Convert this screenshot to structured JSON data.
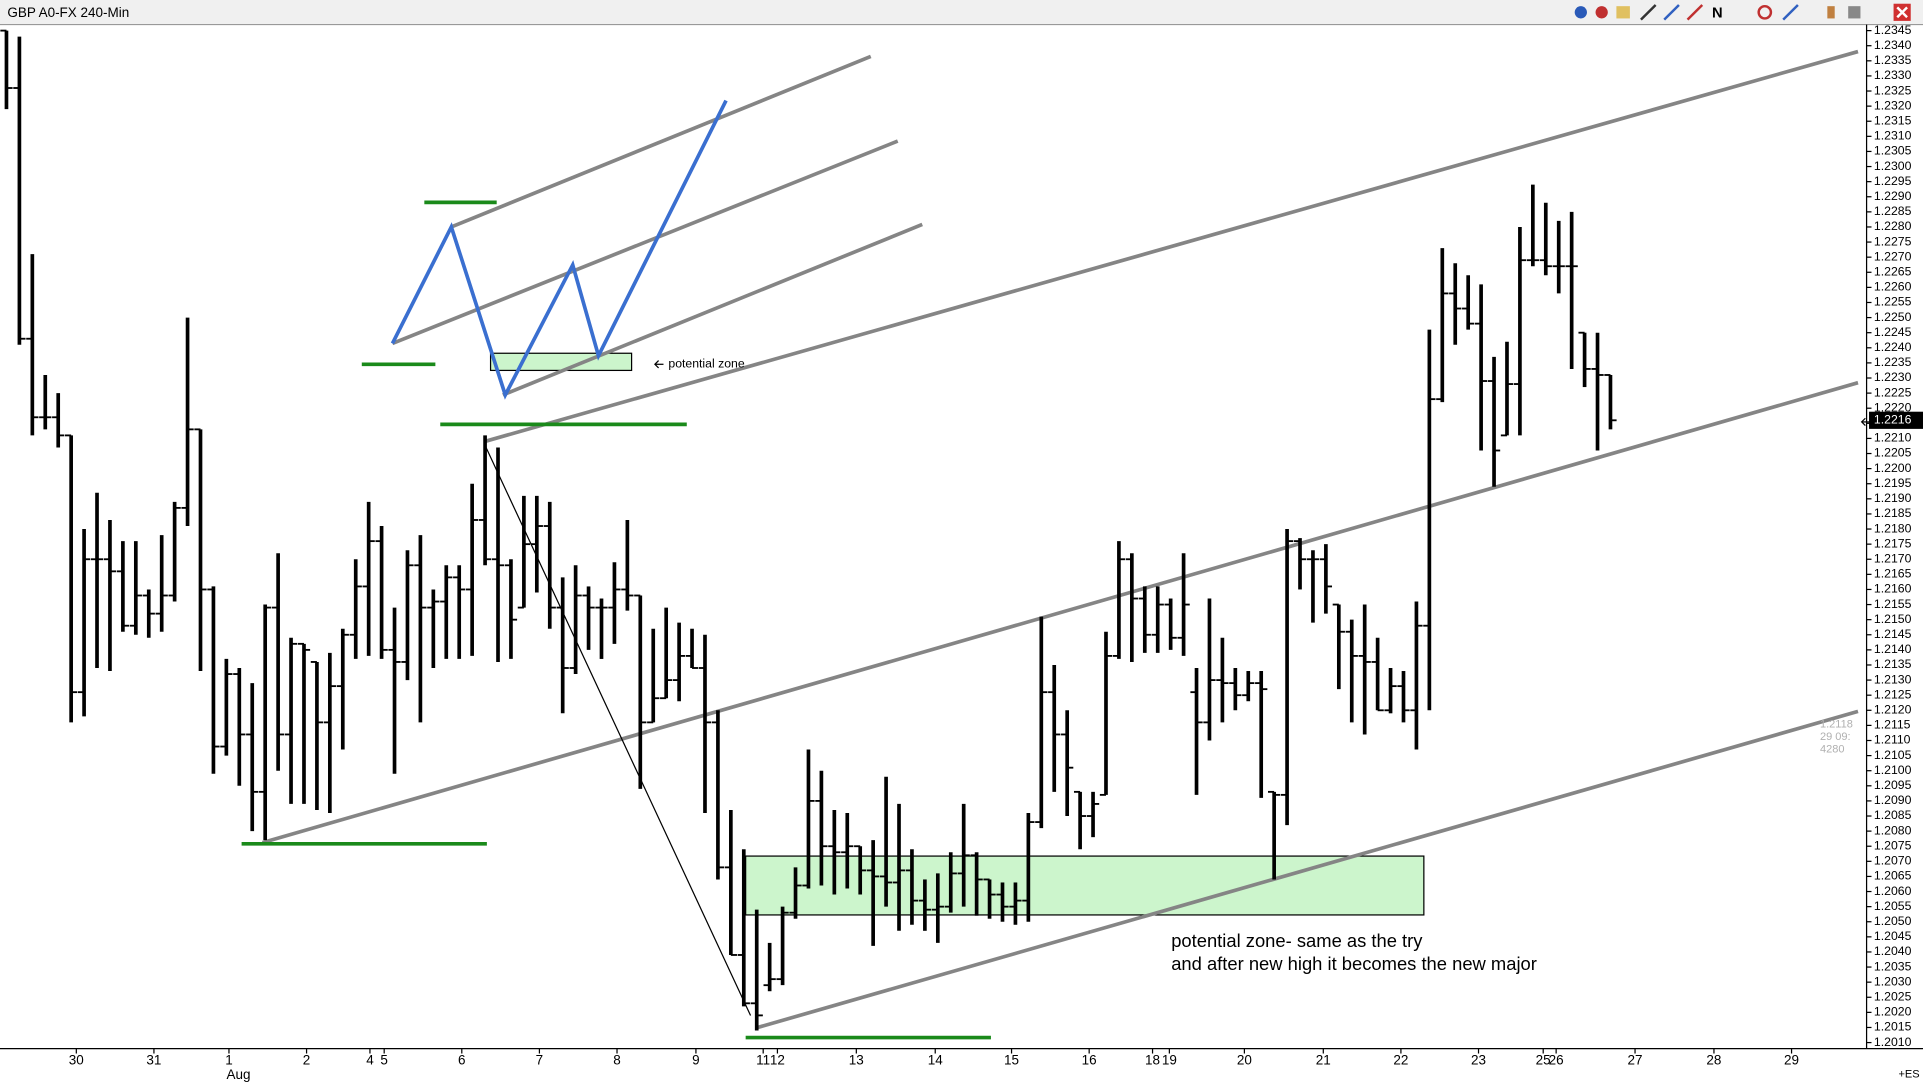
{
  "chart_data": {
    "type": "ohlc",
    "title": "GBP A0-FX 240-Min",
    "color": "#000000",
    "open": [
      1.2345,
      1.2326,
      1.2243,
      1.2217,
      1.2217,
      1.2211,
      1.2126,
      1.217,
      1.217,
      1.2166,
      1.2148,
      1.2158,
      1.2152,
      1.2158,
      1.2187,
      1.2213,
      1.216,
      1.2108,
      1.2132,
      1.2112,
      1.2093,
      1.2154,
      1.2112,
      1.2142,
      1.2136,
      1.2116,
      1.2128,
      1.2145,
      1.2161,
      1.2176,
      1.214,
      1.2136,
      1.2168,
      1.2154,
      1.2156,
      1.2164,
      1.216,
      1.2183,
      1.217,
      1.2168,
      1.2154,
      1.2175,
      1.2181,
      1.2154,
      1.2134,
      1.2158,
      1.2154,
      1.2154,
      1.216,
      1.2158,
      1.2116,
      1.2124,
      1.213,
      1.2138,
      1.2134,
      1.2116,
      1.2068,
      1.2039,
      1.2023,
      1.2029,
      1.2031,
      1.2053,
      1.2062,
      1.209,
      1.2075,
      1.2073,
      1.2075,
      1.2067,
      1.2065,
      1.2063,
      1.2067,
      1.2057,
      1.2054,
      1.2055,
      1.2066,
      1.2072,
      1.2064,
      1.2059,
      1.2055,
      1.2057,
      1.2083,
      1.2126,
      1.2112,
      1.2093,
      1.2085,
      1.2092,
      1.2138,
      1.217,
      1.2157,
      1.2145,
      1.2155,
      1.2144,
      1.2126,
      1.2116,
      1.213,
      1.2129,
      1.2125,
      1.2129,
      1.2093,
      1.2092,
      1.2176,
      1.217,
      1.217,
      1.2155,
      1.2146,
      1.2138,
      1.2136,
      1.212,
      1.2128,
      1.212,
      1.2148,
      1.2223,
      1.2258,
      1.2253,
      1.2248,
      1.2229,
      1.2211,
      1.2228,
      1.2269,
      1.2269,
      1.2267,
      1.2267,
      1.2245,
      1.2233,
      1.2231
    ],
    "high": [
      1.2345,
      1.2343,
      1.2271,
      1.2231,
      1.2225,
      1.2211,
      1.218,
      1.2192,
      1.2183,
      1.2176,
      1.2176,
      1.216,
      1.2178,
      1.2189,
      1.225,
      1.2213,
      1.2161,
      1.2137,
      1.2134,
      1.2129,
      1.2155,
      1.2172,
      1.2144,
      1.2142,
      1.2136,
      1.2139,
      1.2147,
      1.217,
      1.2189,
      1.2181,
      1.2154,
      1.2173,
      1.2178,
      1.216,
      1.2168,
      1.2168,
      1.2195,
      1.2211,
      1.2207,
      1.217,
      1.2191,
      1.2191,
      1.2189,
      1.2164,
      1.2168,
      1.2161,
      1.2157,
      1.2169,
      1.2183,
      1.2158,
      1.2147,
      1.2154,
      1.2149,
      1.2147,
      1.2145,
      1.212,
      1.2087,
      1.2074,
      1.2054,
      1.2043,
      1.2055,
      1.2068,
      1.2107,
      1.21,
      1.2087,
      1.2086,
      1.2075,
      1.2077,
      1.2098,
      1.2089,
      1.2074,
      1.2064,
      1.2066,
      1.2073,
      1.2089,
      1.2073,
      1.2064,
      1.2063,
      1.2063,
      1.2086,
      1.2151,
      1.2135,
      1.212,
      1.2093,
      1.2093,
      1.2146,
      1.2176,
      1.2172,
      1.2161,
      1.2161,
      1.2157,
      1.2172,
      1.2134,
      1.2157,
      1.2144,
      1.2134,
      1.2133,
      1.2133,
      1.2093,
      1.218,
      1.2177,
      1.2173,
      1.2175,
      1.2155,
      1.215,
      1.2155,
      1.2144,
      1.2134,
      1.2133,
      1.2156,
      1.2246,
      1.2273,
      1.2268,
      1.2264,
      1.2261,
      1.2237,
      1.2242,
      1.228,
      1.2294,
      1.2288,
      1.2282,
      1.2285,
      1.2245,
      1.2245,
      1.2231
    ],
    "low": [
      1.2319,
      1.2241,
      1.2211,
      1.2213,
      1.2207,
      1.2116,
      1.2118,
      1.2134,
      1.2133,
      1.2146,
      1.2145,
      1.2144,
      1.2146,
      1.2156,
      1.2181,
      1.2133,
      1.2099,
      1.2105,
      1.2095,
      1.208,
      1.2077,
      1.21,
      1.2089,
      1.2089,
      1.2087,
      1.2086,
      1.2107,
      1.2137,
      1.2138,
      1.2137,
      1.2099,
      1.213,
      1.2116,
      1.2134,
      1.2137,
      1.2137,
      1.2138,
      1.2168,
      1.2136,
      1.2137,
      1.2154,
      1.2159,
      1.2147,
      1.2119,
      1.2132,
      1.214,
      1.2137,
      1.2142,
      1.2153,
      1.2094,
      1.2116,
      1.2124,
      1.2123,
      1.2134,
      1.2086,
      1.2064,
      1.2039,
      1.2022,
      1.2014,
      1.2027,
      1.2029,
      1.2051,
      1.2061,
      1.2062,
      1.2059,
      1.2061,
      1.2059,
      1.2042,
      1.2055,
      1.2047,
      1.2049,
      1.2047,
      1.2043,
      1.2053,
      1.2055,
      1.2052,
      1.2051,
      1.205,
      1.2049,
      1.205,
      1.2081,
      1.2093,
      1.2085,
      1.2074,
      1.2078,
      1.2092,
      1.2137,
      1.2136,
      1.2139,
      1.2139,
      1.214,
      1.2138,
      1.2092,
      1.211,
      1.2116,
      1.212,
      1.2123,
      1.2091,
      1.2064,
      1.2082,
      1.216,
      1.2149,
      1.2152,
      1.2127,
      1.2116,
      1.2112,
      1.212,
      1.2119,
      1.2116,
      1.2107,
      1.212,
      1.2222,
      1.2241,
      1.2246,
      1.2206,
      1.2194,
      1.2211,
      1.2211,
      1.2267,
      1.2264,
      1.2258,
      1.2233,
      1.2227,
      1.2206,
      1.2213
    ],
    "close": [
      1.2326,
      1.2243,
      1.2217,
      1.2217,
      1.2211,
      1.2126,
      1.217,
      1.217,
      1.2166,
      1.2148,
      1.2158,
      1.2152,
      1.2158,
      1.2187,
      1.2213,
      1.216,
      1.2108,
      1.2132,
      1.2112,
      1.2093,
      1.2154,
      1.2112,
      1.2142,
      1.214,
      1.2116,
      1.2128,
      1.2145,
      1.2161,
      1.2176,
      1.214,
      1.2136,
      1.2168,
      1.2154,
      1.2156,
      1.2164,
      1.216,
      1.2183,
      1.217,
      1.2168,
      1.215,
      1.2175,
      1.2181,
      1.2154,
      1.2134,
      1.2158,
      1.2154,
      1.2154,
      1.216,
      1.2158,
      1.2116,
      1.2124,
      1.213,
      1.2138,
      1.2134,
      1.2116,
      1.2068,
      1.2039,
      1.2023,
      1.2019,
      1.2031,
      1.2053,
      1.2062,
      1.209,
      1.2075,
      1.2073,
      1.2075,
      1.2067,
      1.2065,
      1.2063,
      1.2067,
      1.2057,
      1.2054,
      1.2055,
      1.2066,
      1.2072,
      1.2064,
      1.2059,
      1.2055,
      1.2057,
      1.2083,
      1.2126,
      1.2112,
      1.2101,
      1.2085,
      1.2089,
      1.2138,
      1.217,
      1.2157,
      1.2145,
      1.2155,
      1.2144,
      1.2155,
      1.2116,
      1.213,
      1.2129,
      1.2125,
      1.2129,
      1.2127,
      1.2092,
      1.2176,
      1.217,
      1.217,
      1.2161,
      1.2146,
      1.2138,
      1.2136,
      1.212,
      1.2128,
      1.212,
      1.2148,
      1.2223,
      1.2258,
      1.2253,
      1.2248,
      1.2229,
      1.2206,
      1.2228,
      1.2269,
      1.2269,
      1.2267,
      1.2267,
      1.2267,
      1.2233,
      1.2231,
      1.2216
    ],
    "xlim": [
      -0.5,
      143.8
    ],
    "xticks": [
      {
        "value": 5.4,
        "label": "30"
      },
      {
        "value": 11.4,
        "label": "31"
      },
      {
        "value": 17.2,
        "label": "1"
      },
      {
        "value": 23.2,
        "label": "2"
      },
      {
        "value": 28.1,
        "label": "4"
      },
      {
        "value": 29.2,
        "label": "5"
      },
      {
        "value": 35.2,
        "label": "6"
      },
      {
        "value": 41.2,
        "label": "7"
      },
      {
        "value": 47.2,
        "label": "8"
      },
      {
        "value": 53.3,
        "label": "9"
      },
      {
        "value": 58.5,
        "label": "11"
      },
      {
        "value": 59.6,
        "label": "12"
      },
      {
        "value": 65.7,
        "label": "13"
      },
      {
        "value": 71.8,
        "label": "14"
      },
      {
        "value": 77.7,
        "label": "15"
      },
      {
        "value": 83.7,
        "label": "16"
      },
      {
        "value": 88.6,
        "label": "18"
      },
      {
        "value": 89.9,
        "label": "19"
      },
      {
        "value": 95.7,
        "label": "20"
      },
      {
        "value": 101.8,
        "label": "21"
      },
      {
        "value": 107.8,
        "label": "22"
      },
      {
        "value": 113.8,
        "label": "23"
      },
      {
        "value": 118.8,
        "label": "25"
      },
      {
        "value": 119.8,
        "label": "26"
      },
      {
        "value": 125.9,
        "label": "27"
      },
      {
        "value": 132,
        "label": "28"
      },
      {
        "value": 138,
        "label": "29"
      }
    ],
    "x_month_label": "Aug",
    "ylim": [
      1.2008,
      1.2347
    ],
    "yticks": [
      {
        "value": 1.201,
        "label": "1.2010"
      },
      1.2015,
      {
        "value": 1.202,
        "label": "1.2020"
      },
      1.2025,
      {
        "value": 1.203,
        "label": "1.2030"
      },
      1.2035,
      {
        "value": 1.204,
        "label": "1.2040"
      },
      1.2045,
      {
        "value": 1.205,
        "label": "1.2050"
      },
      1.2055,
      {
        "value": 1.206,
        "label": "1.2060"
      },
      1.2065,
      {
        "value": 1.207,
        "label": "1.2070"
      },
      1.2075,
      {
        "value": 1.208,
        "label": "1.2080"
      },
      1.2085,
      {
        "value": 1.209,
        "label": "1.2090"
      },
      1.2095,
      {
        "value": 1.21,
        "label": "1.2100"
      },
      1.2105,
      {
        "value": 1.211,
        "label": "1.2110"
      },
      1.2115,
      {
        "value": 1.212,
        "label": "1.2120"
      },
      1.2125,
      {
        "value": 1.213,
        "label": "1.2130"
      },
      1.2135,
      {
        "value": 1.214,
        "label": "1.2140"
      },
      1.2145,
      {
        "value": 1.215,
        "label": "1.2150"
      },
      1.2155,
      {
        "value": 1.216,
        "label": "1.2160"
      },
      1.2165,
      {
        "value": 1.217,
        "label": "1.2170"
      },
      1.2175,
      {
        "value": 1.218,
        "label": "1.2180"
      },
      1.2185,
      {
        "value": 1.219,
        "label": "1.2190"
      },
      1.2195,
      {
        "value": 1.22,
        "label": "1.2200"
      },
      1.2205,
      {
        "value": 1.221,
        "label": "1.2210"
      },
      1.2215,
      {
        "value": 1.222,
        "label": "1.2220"
      },
      1.2225,
      {
        "value": 1.223,
        "label": "1.2230"
      },
      1.2235,
      {
        "value": 1.224,
        "label": "1.2240"
      },
      1.2245,
      {
        "value": 1.225,
        "label": "1.2250"
      },
      1.2255,
      {
        "value": 1.226,
        "label": "1.2260"
      },
      1.2265,
      {
        "value": 1.227,
        "label": "1.2270"
      },
      1.2275,
      {
        "value": 1.228,
        "label": "1.2280"
      },
      1.2285,
      {
        "value": 1.229,
        "label": "1.2290"
      },
      1.2295,
      {
        "value": 1.23,
        "label": "1.2300"
      },
      1.2305,
      {
        "value": 1.231,
        "label": "1.2310"
      },
      1.2315,
      {
        "value": 1.232,
        "label": "1.2320"
      },
      1.2325,
      {
        "value": 1.233,
        "label": "1.2330"
      },
      1.2335,
      {
        "value": 1.234,
        "label": "1.2340"
      },
      1.2345
    ],
    "last_price": 1.2216,
    "annotations": [
      "potential zone",
      "potential zone- same as the try",
      "and after new high it becomes the new major"
    ],
    "info_text": [
      "1.2118",
      "29 09:",
      "4280"
    ],
    "corner_label": "+ES",
    "toolbar_label": "N"
  }
}
